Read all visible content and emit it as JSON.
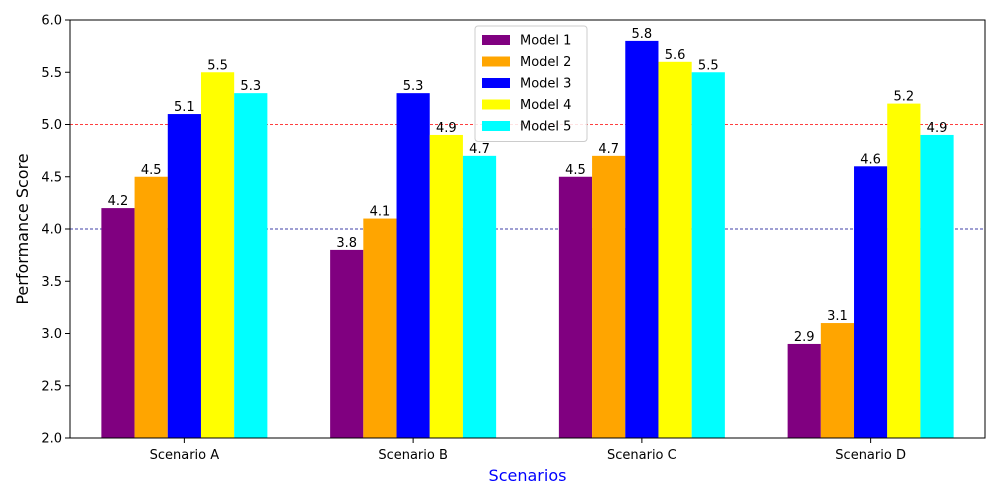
{
  "chart_data": {
    "type": "bar",
    "title": "",
    "xlabel": "Scenarios",
    "ylabel": "Performance Score",
    "xlabel_color": "#0000ff",
    "ylim": [
      2.0,
      6.0
    ],
    "yticks": [
      "2.0",
      "2.5",
      "3.0",
      "3.5",
      "4.0",
      "4.5",
      "5.0",
      "5.5",
      "6.0"
    ],
    "categories": [
      "Scenario A",
      "Scenario B",
      "Scenario C",
      "Scenario D"
    ],
    "series": [
      {
        "name": "Model 1",
        "color": "#800080",
        "values": [
          4.2,
          3.8,
          4.5,
          2.9
        ]
      },
      {
        "name": "Model 2",
        "color": "#ffa500",
        "values": [
          4.5,
          4.1,
          4.7,
          3.1
        ]
      },
      {
        "name": "Model 3",
        "color": "#0000ff",
        "values": [
          5.1,
          5.3,
          5.8,
          4.6
        ]
      },
      {
        "name": "Model 4",
        "color": "#ffff00",
        "values": [
          5.5,
          4.9,
          5.6,
          5.2
        ]
      },
      {
        "name": "Model 5",
        "color": "#00ffff",
        "values": [
          5.3,
          4.7,
          5.5,
          4.9
        ]
      }
    ],
    "reference_lines": [
      {
        "y": 4.0,
        "color": "#00008b",
        "style": "dashed"
      },
      {
        "y": 5.0,
        "color": "#ff0000",
        "style": "dashed"
      }
    ],
    "legend_position": "top-center",
    "grid": false
  }
}
